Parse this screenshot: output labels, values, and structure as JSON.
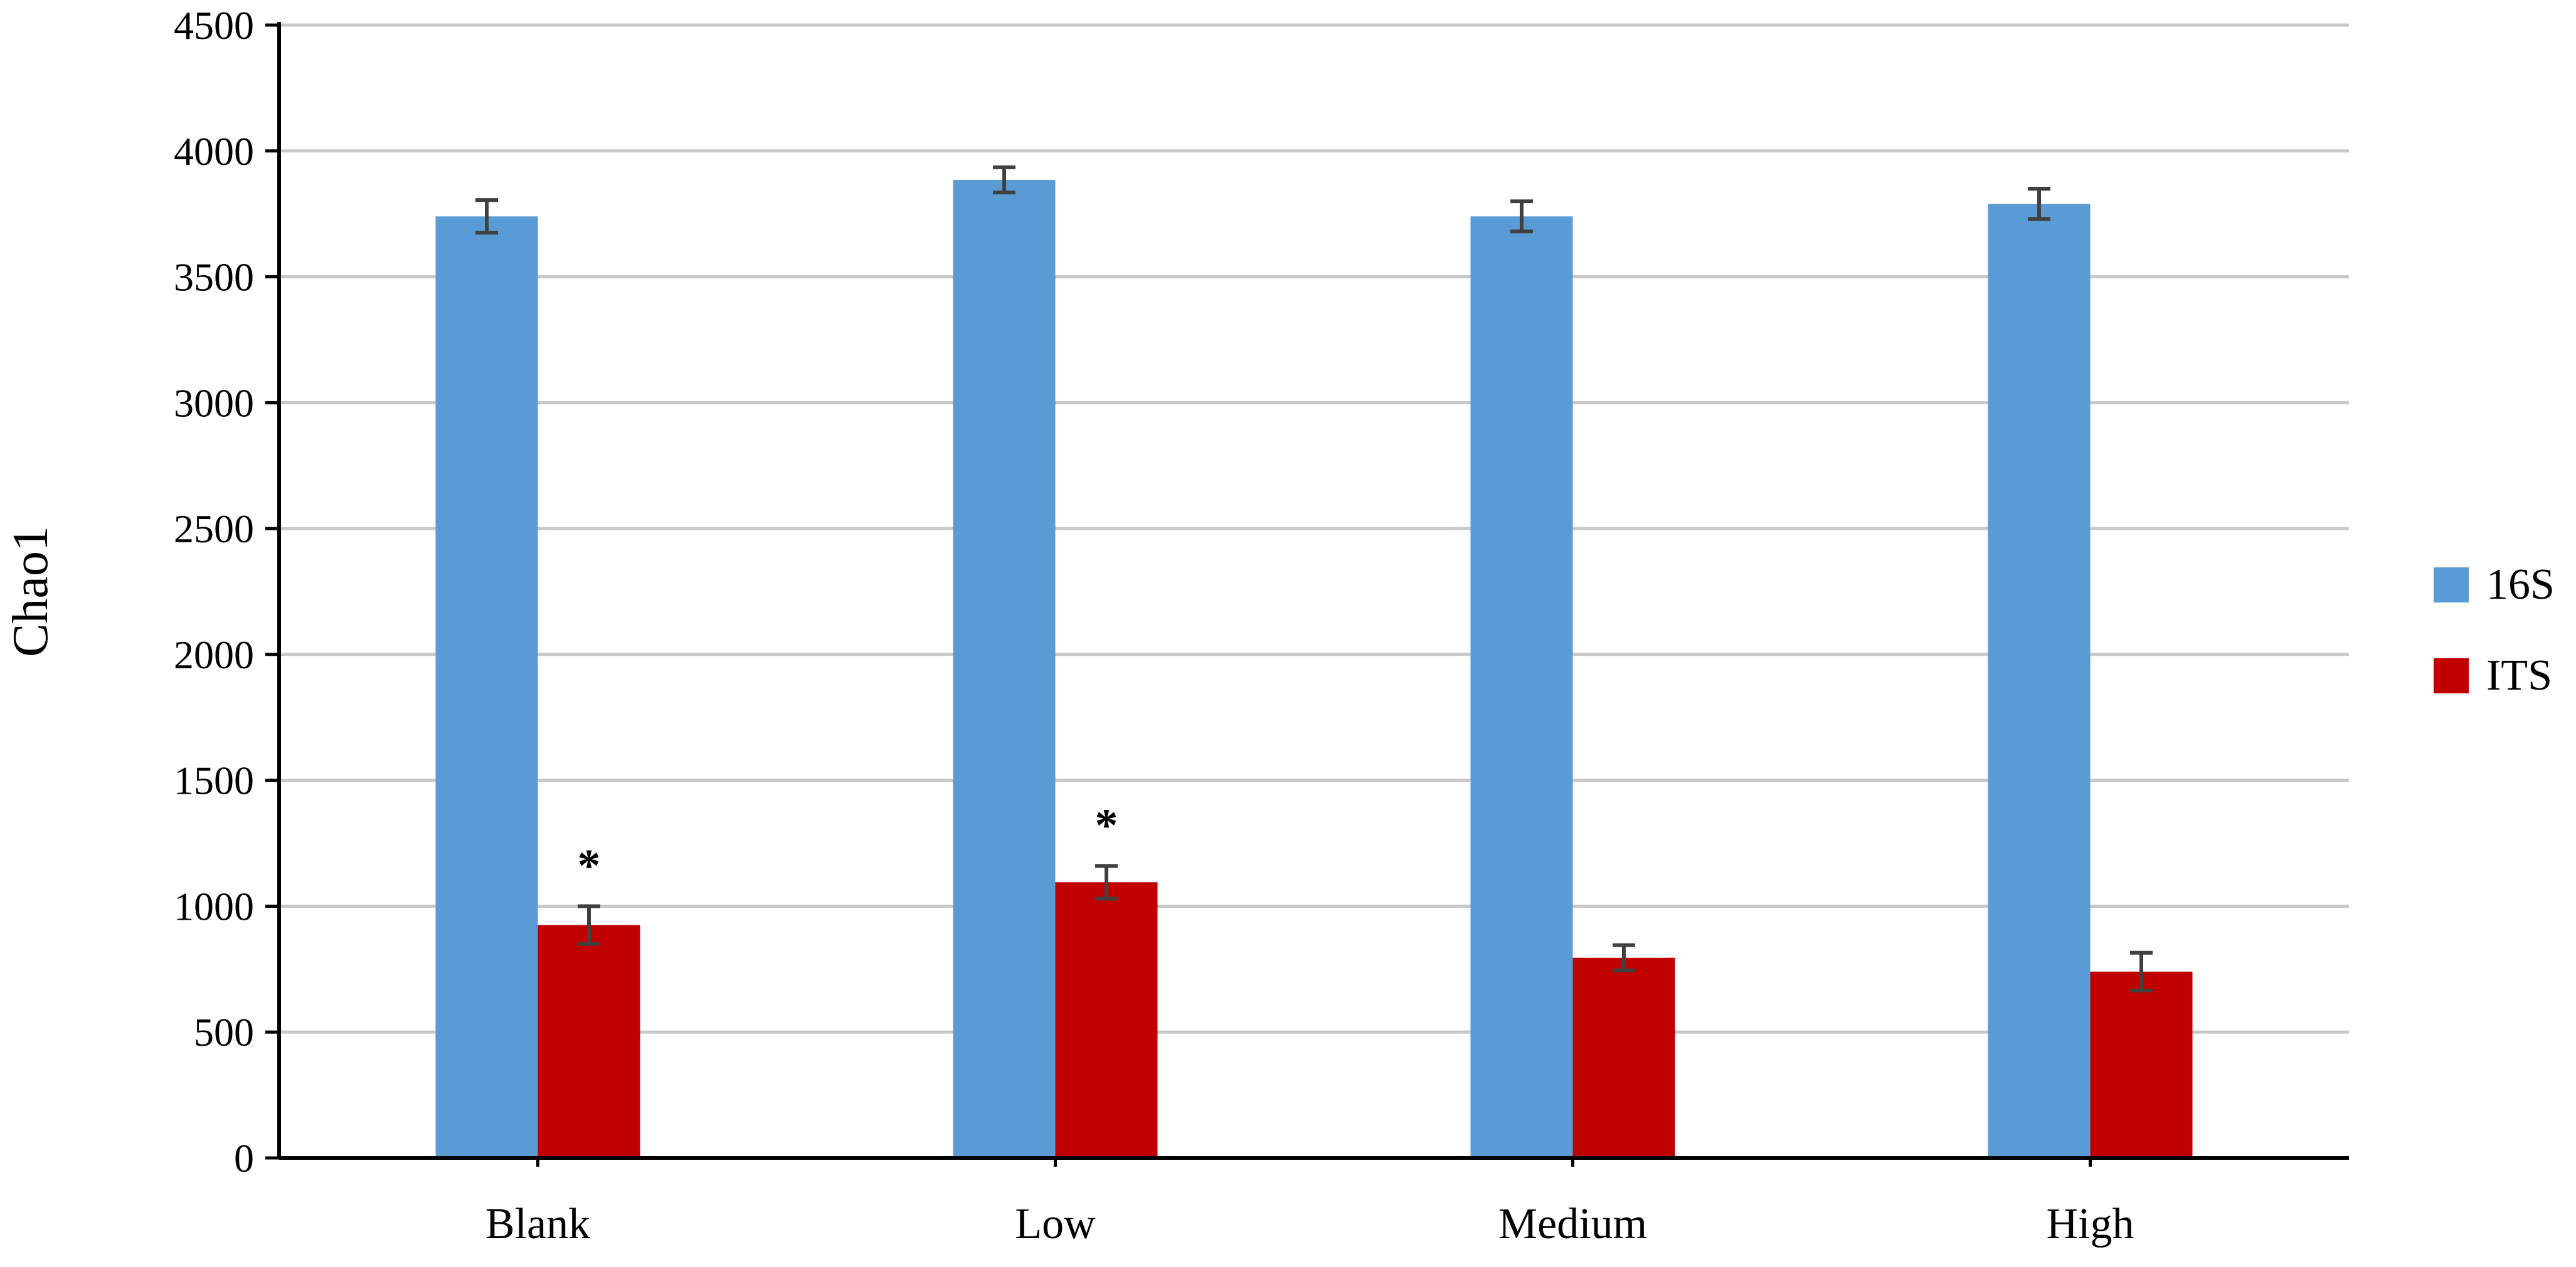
{
  "chart_data": {
    "type": "bar",
    "title": "",
    "xlabel": "",
    "ylabel": "Chao1",
    "categories": [
      "Blank",
      "Low",
      "Medium",
      "High"
    ],
    "ylim": [
      0,
      4500
    ],
    "yticks": [
      0,
      500,
      1000,
      1500,
      2000,
      2500,
      3000,
      3500,
      4000,
      4500
    ],
    "ytick_labels": [
      "0",
      "500",
      "1000",
      "1500",
      "2000",
      "2500",
      "3000",
      "3500",
      "4000",
      "4500"
    ],
    "grid": true,
    "legend_position": "right",
    "series": [
      {
        "name": "16S",
        "color": "#5B9BD5",
        "values": [
          3740,
          3885,
          3740,
          3790
        ],
        "errors": [
          65,
          50,
          60,
          60
        ]
      },
      {
        "name": "ITS",
        "color": "#C00000",
        "values": [
          925,
          1095,
          795,
          740
        ],
        "errors": [
          75,
          65,
          50,
          75
        ]
      }
    ],
    "annotations": [
      {
        "category": "Blank",
        "series": "ITS",
        "text": "*"
      },
      {
        "category": "Low",
        "series": "ITS",
        "text": "*"
      }
    ]
  }
}
